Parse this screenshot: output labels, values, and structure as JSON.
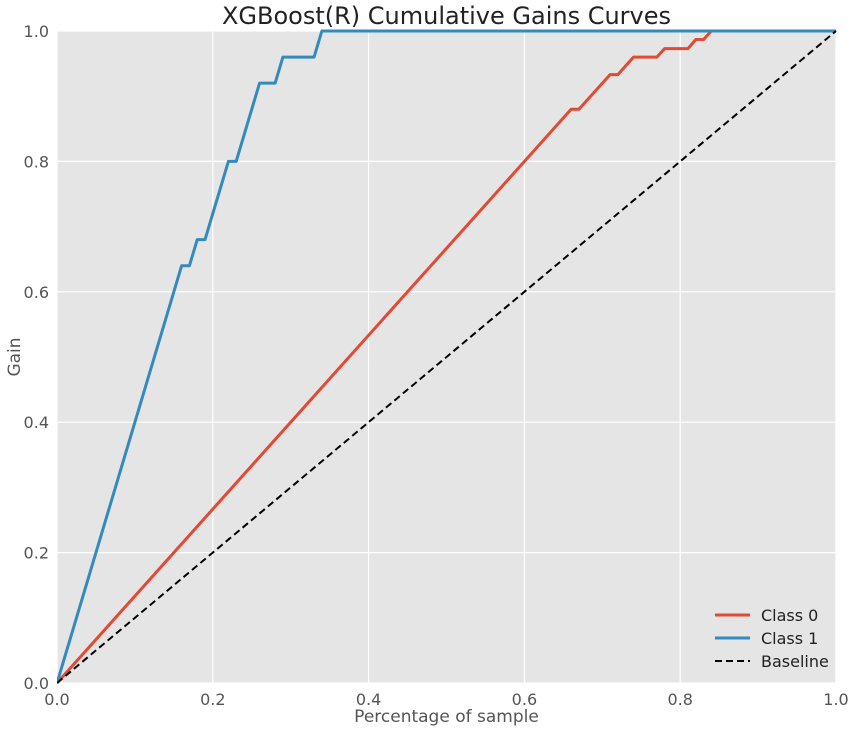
{
  "chart_data": {
    "type": "line",
    "title": "XGBoost(R) Cumulative Gains Curves",
    "xlabel": "Percentage of sample",
    "ylabel": "Gain",
    "xlim": [
      0.0,
      1.0
    ],
    "ylim": [
      0.0,
      1.0
    ],
    "xticks": [
      "0.0",
      "0.2",
      "0.4",
      "0.6",
      "0.8",
      "1.0"
    ],
    "yticks": [
      "0.0",
      "0.2",
      "0.4",
      "0.6",
      "0.8",
      "1.0"
    ],
    "grid": true,
    "legend_position": "bottom-right",
    "background_color": "#e5e5e5",
    "series": [
      {
        "name": "Class 0",
        "color": "#e24a33",
        "style": "solid",
        "x": [
          0.0,
          0.66,
          0.67,
          0.71,
          0.72,
          0.74,
          0.77,
          0.78,
          0.81,
          0.82,
          0.83,
          0.84,
          1.0
        ],
        "y": [
          0.0,
          0.88,
          0.88,
          0.933,
          0.933,
          0.96,
          0.96,
          0.973,
          0.973,
          0.987,
          0.987,
          1.0,
          1.0
        ]
      },
      {
        "name": "Class 1",
        "color": "#348abd",
        "style": "solid",
        "x": [
          0.0,
          0.16,
          0.17,
          0.18,
          0.19,
          0.22,
          0.23,
          0.26,
          0.28,
          0.29,
          0.33,
          0.34,
          1.0
        ],
        "y": [
          0.0,
          0.64,
          0.64,
          0.68,
          0.68,
          0.8,
          0.8,
          0.92,
          0.92,
          0.96,
          0.96,
          1.0,
          1.0
        ]
      },
      {
        "name": "Baseline",
        "color": "#000000",
        "style": "dashed",
        "x": [
          0.0,
          1.0
        ],
        "y": [
          0.0,
          1.0
        ]
      }
    ]
  }
}
